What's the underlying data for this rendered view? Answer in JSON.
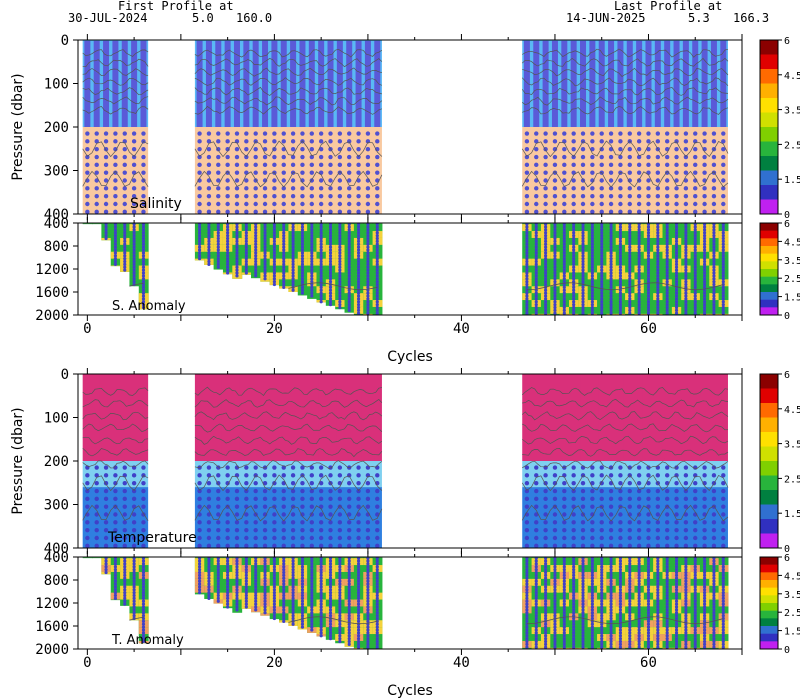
{
  "header": {
    "first_label": "First Profile at",
    "first_date": "30-JUL-2024",
    "first_lat": "5.0",
    "first_lon": "160.0",
    "last_label": "Last Profile at",
    "last_date": "14-JUN-2025",
    "last_lat": "5.3",
    "last_lon": "166.3"
  },
  "colors": {
    "salinity_top": "#5a5ad8",
    "salinity_bg": "#f9c9a0",
    "salinity_dot": "#5050d0",
    "salinity_sky": "#5ab8f5",
    "temperature_top": "#d9307a",
    "temperature_mid": "#7fd0f0",
    "temperature_deep": "#2f7fe0",
    "temperature_dot": "#4040c8",
    "anomaly_a": "#28b43c",
    "anomaly_b": "#f5d23c",
    "anomaly_c": "#f0a060",
    "anomaly_dot": "#4040c8",
    "contour": "#555555"
  },
  "colorbar": {
    "tick_labels": [
      "6",
      "4.5",
      "3.5",
      "2.5",
      "1.5",
      "0"
    ],
    "colors": [
      "#8b0000",
      "#e00000",
      "#ff6a00",
      "#ffb000",
      "#ffe000",
      "#d0e000",
      "#80d000",
      "#28b43c",
      "#008040",
      "#3070d0",
      "#3030c0",
      "#c020f0"
    ]
  },
  "chart_data": [
    {
      "type": "heatmap",
      "panel": "upper",
      "title": "Salinity",
      "ylabel": "Pressure (dbar)",
      "ylim": [
        400,
        0
      ],
      "y_ticks": [
        0,
        100,
        200,
        300,
        400
      ],
      "x_ticks": [
        0,
        20,
        40,
        60
      ],
      "xlim": [
        -1,
        70
      ],
      "segments": [
        [
          0,
          6
        ],
        [
          12,
          31
        ],
        [
          47,
          68
        ]
      ],
      "profiles_to_2000": [
        2,
        3,
        4,
        5,
        6,
        17,
        18,
        19,
        20,
        21,
        22,
        23,
        24,
        25,
        26,
        27,
        28,
        29,
        30,
        31,
        47,
        48,
        49,
        50,
        51,
        52,
        53,
        54,
        55,
        56,
        57,
        58,
        59,
        60,
        61,
        62,
        63,
        64,
        65,
        66,
        67,
        68
      ]
    },
    {
      "type": "heatmap",
      "panel": "anomaly",
      "title": "S. Anomaly",
      "ylim": [
        2000,
        400
      ],
      "y_ticks": [
        400,
        800,
        1200,
        1600,
        2000
      ],
      "x_ticks": [
        0,
        20,
        40,
        60
      ],
      "xlabel": "Cycles",
      "colorbar_range": [
        0,
        6
      ]
    },
    {
      "type": "heatmap",
      "panel": "upper",
      "title": "Temperature",
      "ylabel": "Pressure (dbar)",
      "ylim": [
        400,
        0
      ],
      "y_ticks": [
        0,
        100,
        200,
        300,
        400
      ],
      "x_ticks": [
        0,
        20,
        40,
        60
      ],
      "xlim": [
        -1,
        70
      ]
    },
    {
      "type": "heatmap",
      "panel": "anomaly",
      "title": "T. Anomaly",
      "ylim": [
        2000,
        400
      ],
      "y_ticks": [
        400,
        800,
        1200,
        1600,
        2000
      ],
      "x_ticks": [
        0,
        20,
        40,
        60
      ],
      "xlabel": "Cycles",
      "colorbar_range": [
        0,
        6
      ]
    }
  ]
}
